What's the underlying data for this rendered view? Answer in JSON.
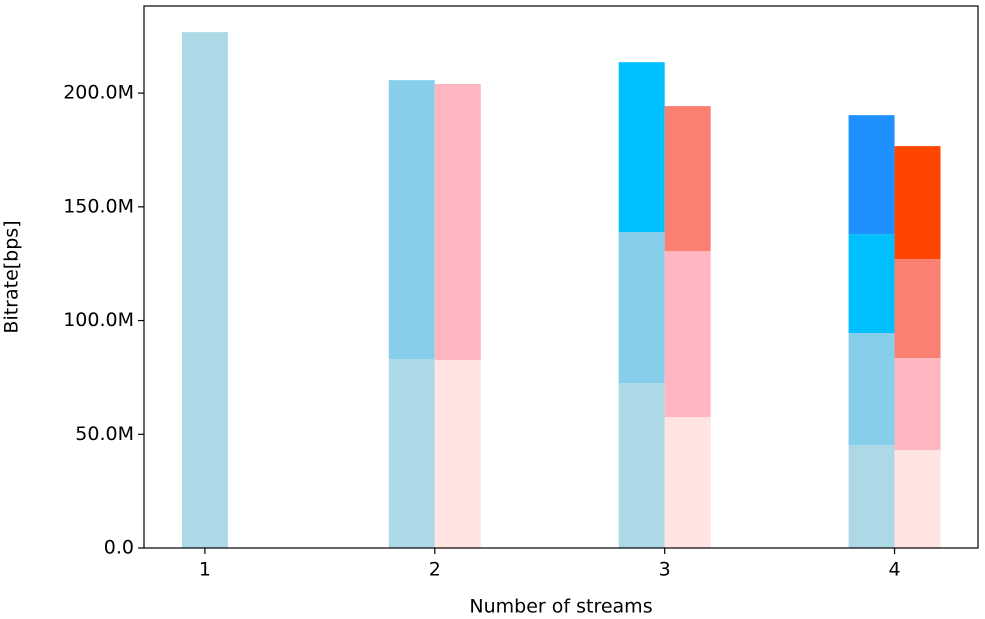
{
  "chart_data": {
    "type": "stacked_bar",
    "xlabel": "Number of streams",
    "ylabel": "Bitrate[bps]",
    "x": [
      1,
      2,
      3,
      4
    ],
    "series": [
      {
        "stack": "a",
        "color": "#add8e6",
        "values": [
          226800000,
          83100000,
          72500000,
          45300000
        ]
      },
      {
        "stack": "a",
        "color": "#87ceeb",
        "values": [
          null,
          122600000,
          66400000,
          49200000
        ]
      },
      {
        "stack": "a",
        "color": "#00bfff",
        "values": [
          null,
          null,
          74700000,
          43500000
        ]
      },
      {
        "stack": "a",
        "color": "#1e90ff",
        "values": [
          null,
          null,
          null,
          52300000
        ]
      },
      {
        "stack": "b",
        "color": "#ffe4e1",
        "values": [
          null,
          82600000,
          57600000,
          43100000
        ]
      },
      {
        "stack": "b",
        "color": "#ffb6c1",
        "values": [
          null,
          121400000,
          72900000,
          40400000
        ]
      },
      {
        "stack": "b",
        "color": "#fa8072",
        "values": [
          null,
          null,
          63800000,
          43500000
        ]
      },
      {
        "stack": "b",
        "color": "#ff4500",
        "values": [
          null,
          null,
          null,
          49700000
        ]
      }
    ],
    "xlim": [
      0.735,
      4.363
    ],
    "ylim": [
      0,
      238300000
    ],
    "xticks": [
      1,
      2,
      3,
      4
    ],
    "yticks": [
      {
        "value": 0,
        "label": "0.0"
      },
      {
        "value": 50000000,
        "label": "50.0M"
      },
      {
        "value": 100000000,
        "label": "100.0M"
      },
      {
        "value": 150000000,
        "label": "150.0M"
      },
      {
        "value": 200000000,
        "label": "200.0M"
      }
    ],
    "grid": false
  }
}
